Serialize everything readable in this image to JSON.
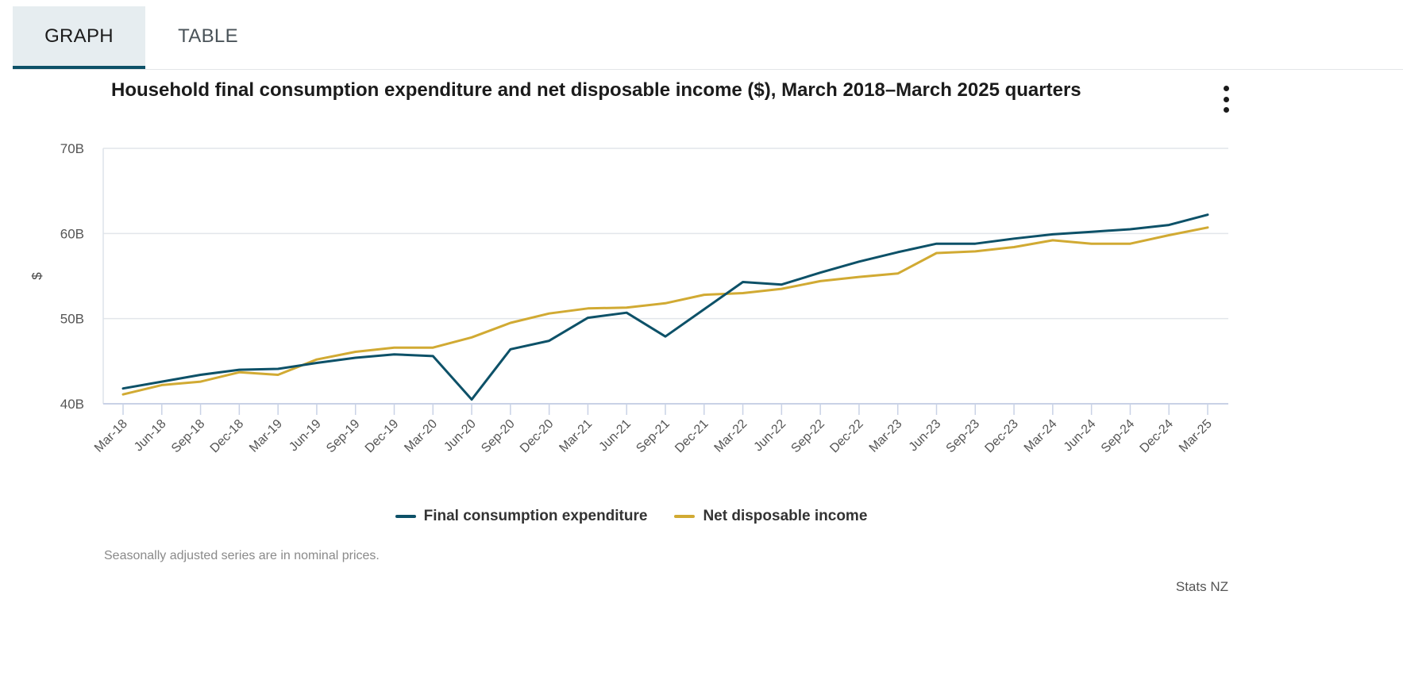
{
  "tabs": [
    {
      "label": "GRAPH",
      "active": true
    },
    {
      "label": "TABLE",
      "active": false
    }
  ],
  "chart_data": {
    "type": "line",
    "title": "Household final consumption expenditure and net disposable income ($), March 2018–March 2025 quarters",
    "xlabel": "",
    "ylabel": "$",
    "ylim": [
      40,
      70
    ],
    "yticks": [
      40,
      50,
      60,
      70
    ],
    "ytick_labels": [
      "40B",
      "50B",
      "60B",
      "70B"
    ],
    "categories": [
      "Mar-18",
      "Jun-18",
      "Sep-18",
      "Dec-18",
      "Mar-19",
      "Jun-19",
      "Sep-19",
      "Dec-19",
      "Mar-20",
      "Jun-20",
      "Sep-20",
      "Dec-20",
      "Mar-21",
      "Jun-21",
      "Sep-21",
      "Dec-21",
      "Mar-22",
      "Jun-22",
      "Sep-22",
      "Dec-22",
      "Mar-23",
      "Jun-23",
      "Sep-23",
      "Dec-23",
      "Mar-24",
      "Jun-24",
      "Sep-24",
      "Dec-24",
      "Mar-25"
    ],
    "series": [
      {
        "name": "Final consumption expenditure",
        "color": "#0d5168",
        "values": [
          41.8,
          42.6,
          43.4,
          44.0,
          44.1,
          44.8,
          45.4,
          45.8,
          45.6,
          40.5,
          46.4,
          47.4,
          50.1,
          50.7,
          47.9,
          51.1,
          54.3,
          54.0,
          55.4,
          56.7,
          57.8,
          58.8,
          58.8,
          59.4,
          59.9,
          60.2,
          60.5,
          61.0,
          62.2
        ]
      },
      {
        "name": "Net disposable income",
        "color": "#d1aa33",
        "values": [
          41.1,
          42.2,
          42.6,
          43.7,
          43.4,
          45.2,
          46.1,
          46.6,
          46.6,
          47.8,
          49.5,
          50.6,
          51.2,
          51.3,
          51.8,
          52.8,
          53.0,
          53.5,
          54.4,
          54.9,
          55.3,
          57.7,
          57.9,
          58.4,
          59.2,
          58.8,
          58.8,
          59.8,
          60.7
        ]
      }
    ],
    "grid": true,
    "legend_position": "bottom-center"
  },
  "footnote": "Seasonally adjusted series are in nominal prices.",
  "credit": "Stats NZ"
}
